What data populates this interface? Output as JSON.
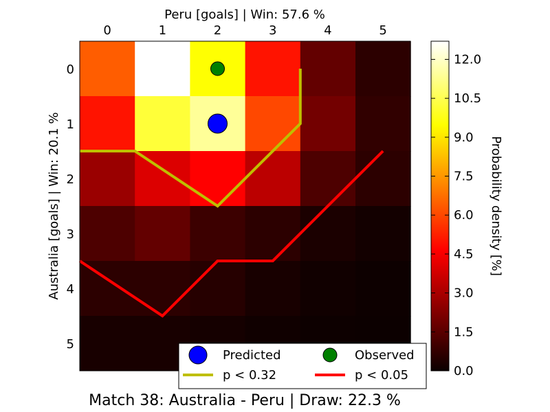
{
  "chart_data": {
    "type": "heatmap",
    "title": "Match 38: Australia - Peru | Draw: 22.3 %",
    "xlabel": "Peru [goals] | Win: 57.6 %",
    "ylabel": "Australia [goals] | Win: 20.1 %",
    "x_categories": [
      "0",
      "1",
      "2",
      "3",
      "4",
      "5"
    ],
    "y_categories": [
      "0",
      "1",
      "2",
      "3",
      "4",
      "5"
    ],
    "values": [
      [
        6.4,
        12.7,
        9.5,
        5.0,
        1.6,
        0.6
      ],
      [
        5.0,
        10.2,
        11.4,
        6.0,
        1.9,
        0.7
      ],
      [
        2.6,
        3.8,
        4.6,
        3.2,
        1.2,
        0.6
      ],
      [
        1.2,
        1.6,
        0.9,
        0.6,
        0.3,
        0.15
      ],
      [
        0.6,
        0.6,
        0.5,
        0.25,
        0.12,
        0.05
      ],
      [
        0.25,
        0.25,
        0.18,
        0.1,
        0.05,
        0.02
      ]
    ],
    "colorbar": {
      "label": "Probability density [%]",
      "range": [
        0,
        12.7
      ],
      "ticks": [
        "0.0",
        "1.5",
        "3.0",
        "4.5",
        "6.0",
        "7.5",
        "9.0",
        "10.5",
        "12.0"
      ]
    },
    "points": [
      {
        "name": "Predicted",
        "x": 2,
        "y": 1,
        "color": "#0000ff"
      },
      {
        "name": "Observed",
        "x": 2,
        "y": 0,
        "color": "#008000"
      }
    ],
    "contours": [
      {
        "name": "p < 0.32",
        "color": "#bfbf00",
        "points": [
          [
            -0.5,
            1.5
          ],
          [
            0.5,
            1.5
          ],
          [
            2.0,
            2.5
          ],
          [
            3.5,
            1.0
          ],
          [
            3.5,
            0.0
          ]
        ]
      },
      {
        "name": "p < 0.05",
        "color": "#ff0000",
        "points": [
          [
            -0.5,
            3.5
          ],
          [
            1.0,
            4.5
          ],
          [
            2.0,
            3.5
          ],
          [
            3.0,
            3.5
          ],
          [
            5.0,
            1.5
          ]
        ]
      }
    ],
    "legend": {
      "placement": "bottom-right"
    },
    "grid": false
  }
}
